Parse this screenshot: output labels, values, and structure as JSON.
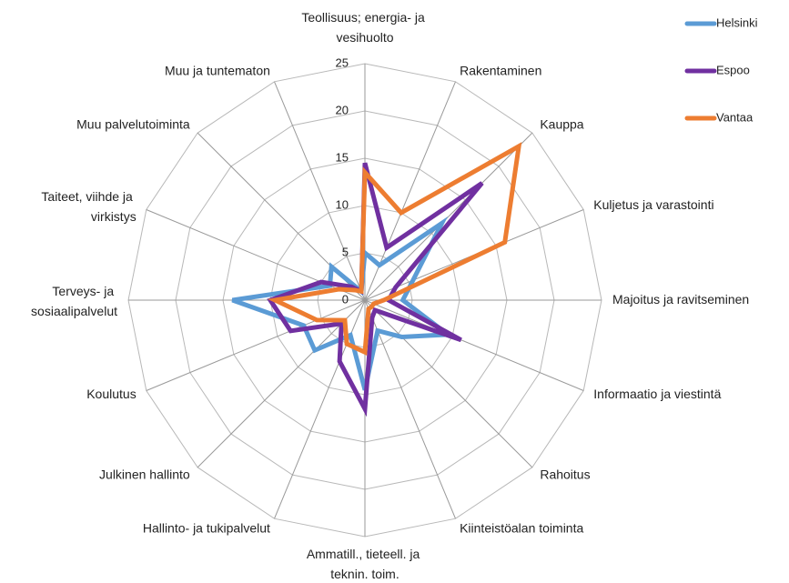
{
  "chart_data": {
    "type": "radar",
    "categories": [
      "Teollisuus; energia- ja vesihuolto",
      "Rakentaminen",
      "Kauppa",
      "Kuljetus ja varastointi",
      "Majoitus ja ravitseminen",
      "Informaatio ja viestintä",
      "Rahoitus",
      "Kiinteistöalan toiminta",
      "Ammatill., tieteell. ja teknin. toim.",
      "Hallinto- ja tukipalvelut",
      "Julkinen hallinto",
      "Koulutus",
      "Terveys- ja sosiaalipalvelut",
      "Taiteet, viihde ja virkistys",
      "Muu palvelutoiminta",
      "Muu ja tuntematon"
    ],
    "series": [
      {
        "name": "Helsinki",
        "color": "#5b9bd5",
        "values": [
          5,
          4,
          11.5,
          5.5,
          4,
          9.5,
          5.5,
          3.5,
          9.5,
          4,
          7.5,
          7,
          14,
          4,
          5,
          1
        ]
      },
      {
        "name": "Espoo",
        "color": "#7030a0",
        "values": [
          14.5,
          6,
          17.5,
          3.5,
          2.5,
          11,
          1.5,
          2,
          11.5,
          7,
          3.5,
          8.5,
          10,
          5,
          2,
          1
        ]
      },
      {
        "name": "Vantaa",
        "color": "#ed7d31",
        "values": [
          13.5,
          10,
          23,
          16,
          2,
          1,
          1,
          1,
          5.5,
          5,
          3,
          5.5,
          9.5,
          3,
          1.5,
          1
        ]
      }
    ],
    "ylim": [
      0,
      25
    ],
    "yticks": [
      0,
      5,
      10,
      15,
      20,
      25
    ],
    "grid": true,
    "legend": "top-right"
  }
}
